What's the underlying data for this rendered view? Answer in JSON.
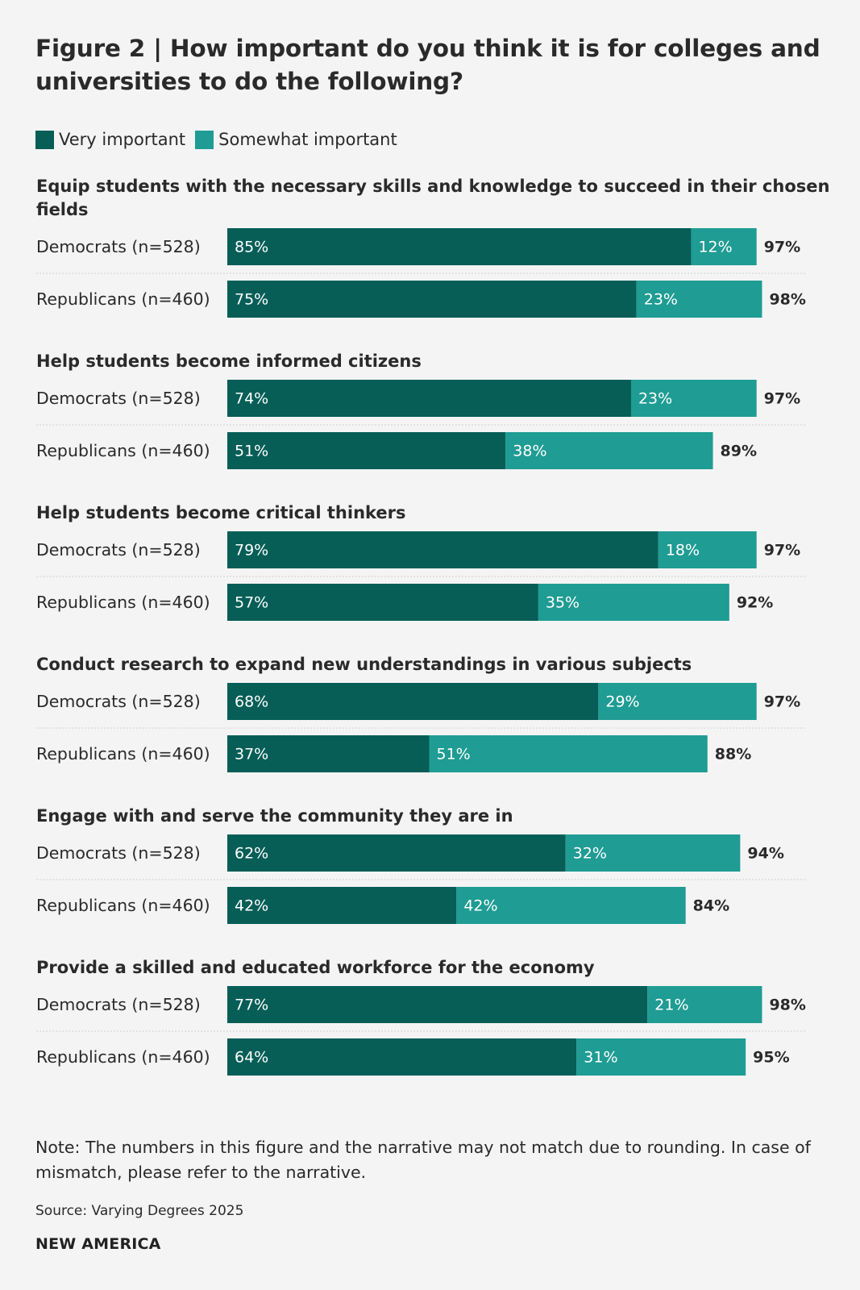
{
  "figure": {
    "title": "Figure 2 | How important do you think it is for colleges and universities to do the following?",
    "note": "Note: The numbers in this figure and the narrative may not match due to rounding. In case of mismatch, please refer to the narrative.",
    "source": "Source: Varying Degrees 2025",
    "brand": "NEW AMERICA"
  },
  "legend": {
    "very": "Very important",
    "somewhat": "Somewhat important"
  },
  "colors": {
    "very": "#065e57",
    "somewhat": "#1f9c93",
    "background": "#f4f4f4",
    "separator": "#cfcfcf"
  },
  "chart_data": {
    "type": "bar",
    "orientation": "horizontal",
    "stacked": true,
    "series_names": [
      "Very important",
      "Somewhat important"
    ],
    "xlim": [
      0,
      100
    ],
    "grid": false,
    "legend_position": "top-left",
    "groups": [
      {
        "label": "Equip students with the necessary skills and knowledge to succeed in their chosen fields",
        "label_lines": [
          "Equip students with the necessary skills and knowledge to succeed in their chosen",
          "fields"
        ],
        "rows": [
          {
            "label": "Democrats (n=528)",
            "very": 85,
            "somewhat": 12,
            "very_label": "85%",
            "somewhat_label": "12%",
            "total_label": "97%"
          },
          {
            "label": "Republicans (n=460)",
            "very": 75,
            "somewhat": 23,
            "very_label": "75%",
            "somewhat_label": "23%",
            "total_label": "98%"
          }
        ]
      },
      {
        "label": "Help students become informed citizens",
        "label_lines": [
          "Help students become informed citizens"
        ],
        "rows": [
          {
            "label": "Democrats (n=528)",
            "very": 74,
            "somewhat": 23,
            "very_label": "74%",
            "somewhat_label": "23%",
            "total_label": "97%"
          },
          {
            "label": "Republicans (n=460)",
            "very": 51,
            "somewhat": 38,
            "very_label": "51%",
            "somewhat_label": "38%",
            "total_label": "89%"
          }
        ]
      },
      {
        "label": "Help students become critical thinkers",
        "label_lines": [
          "Help students become critical thinkers"
        ],
        "rows": [
          {
            "label": "Democrats (n=528)",
            "very": 79,
            "somewhat": 18,
            "very_label": "79%",
            "somewhat_label": "18%",
            "total_label": "97%"
          },
          {
            "label": "Republicans (n=460)",
            "very": 57,
            "somewhat": 35,
            "very_label": "57%",
            "somewhat_label": "35%",
            "total_label": "92%"
          }
        ]
      },
      {
        "label": "Conduct research to expand new understandings in various subjects",
        "label_lines": [
          "Conduct research to expand new understandings in various subjects"
        ],
        "rows": [
          {
            "label": "Democrats (n=528)",
            "very": 68,
            "somewhat": 29,
            "very_label": "68%",
            "somewhat_label": "29%",
            "total_label": "97%"
          },
          {
            "label": "Republicans (n=460)",
            "very": 37,
            "somewhat": 51,
            "very_label": "37%",
            "somewhat_label": "51%",
            "total_label": "88%"
          }
        ]
      },
      {
        "label": "Engage with and serve the community they are in",
        "label_lines": [
          "Engage with and serve the community they are in"
        ],
        "rows": [
          {
            "label": "Democrats (n=528)",
            "very": 62,
            "somewhat": 32,
            "very_label": "62%",
            "somewhat_label": "32%",
            "total_label": "94%"
          },
          {
            "label": "Republicans (n=460)",
            "very": 42,
            "somewhat": 42,
            "very_label": "42%",
            "somewhat_label": "42%",
            "total_label": "84%"
          }
        ]
      },
      {
        "label": "Provide a skilled and educated workforce for the economy",
        "label_lines": [
          "Provide a skilled and educated workforce for the economy"
        ],
        "rows": [
          {
            "label": "Democrats (n=528)",
            "very": 77,
            "somewhat": 21,
            "very_label": "77%",
            "somewhat_label": "21%",
            "total_label": "98%"
          },
          {
            "label": "Republicans (n=460)",
            "very": 64,
            "somewhat": 31,
            "very_label": "64%",
            "somewhat_label": "31%",
            "total_label": "95%"
          }
        ]
      }
    ]
  }
}
